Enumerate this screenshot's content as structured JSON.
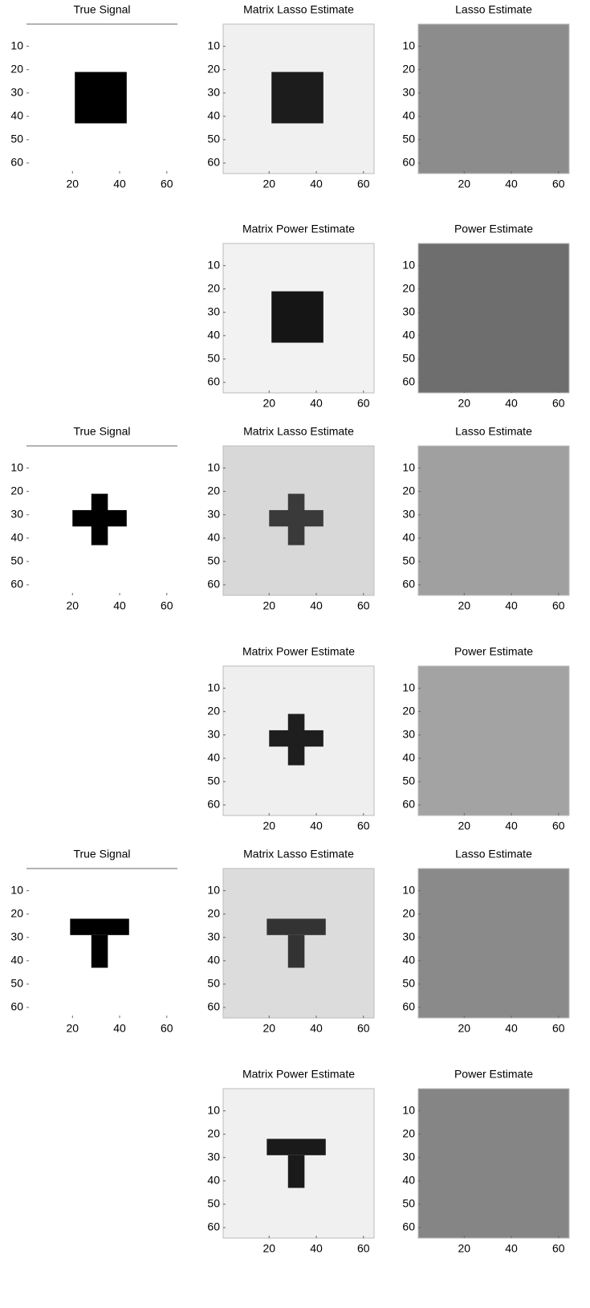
{
  "chart_data": [
    {
      "type": "heatmap",
      "title": "True Signal",
      "xlim": [
        0.5,
        64.5
      ],
      "ylim": [
        0.5,
        64.5
      ],
      "xticks": [
        20,
        40,
        60
      ],
      "yticks": [
        10,
        20,
        30,
        40,
        50,
        60
      ],
      "background": "#ffffff",
      "block_color": "#000000",
      "blocks": [
        {
          "x": [
            21,
            43
          ],
          "y": [
            21,
            43
          ]
        }
      ]
    },
    {
      "type": "heatmap",
      "title": "Matrix Lasso Estimate",
      "xlim": [
        0.5,
        64.5
      ],
      "ylim": [
        0.5,
        64.5
      ],
      "xticks": [
        20,
        40,
        60
      ],
      "yticks": [
        10,
        20,
        30,
        40,
        50,
        60
      ],
      "background": "#f0f0f0",
      "block_color": "#1c1c1c",
      "blocks": [
        {
          "x": [
            21,
            43
          ],
          "y": [
            21,
            43
          ]
        }
      ]
    },
    {
      "type": "heatmap",
      "title": "Lasso Estimate",
      "xlim": [
        0.5,
        64.5
      ],
      "ylim": [
        0.5,
        64.5
      ],
      "xticks": [
        20,
        40,
        60
      ],
      "yticks": [
        10,
        20,
        30,
        40,
        50,
        60
      ],
      "background": "#8c8c8c",
      "block_color": "#8c8c8c",
      "blocks": []
    },
    {
      "type": "heatmap",
      "title": "Matrix Power Estimate",
      "xlim": [
        0.5,
        64.5
      ],
      "ylim": [
        0.5,
        64.5
      ],
      "xticks": [
        20,
        40,
        60
      ],
      "yticks": [
        10,
        20,
        30,
        40,
        50,
        60
      ],
      "background": "#f2f2f2",
      "block_color": "#151515",
      "blocks": [
        {
          "x": [
            21,
            43
          ],
          "y": [
            21,
            43
          ]
        }
      ]
    },
    {
      "type": "heatmap",
      "title": "Power Estimate",
      "xlim": [
        0.5,
        64.5
      ],
      "ylim": [
        0.5,
        64.5
      ],
      "xticks": [
        20,
        40,
        60
      ],
      "yticks": [
        10,
        20,
        30,
        40,
        50,
        60
      ],
      "background": "#6e6e6e",
      "block_color": "#6e6e6e",
      "blocks": []
    },
    {
      "type": "heatmap",
      "title": "True Signal",
      "xlim": [
        0.5,
        64.5
      ],
      "ylim": [
        0.5,
        64.5
      ],
      "xticks": [
        20,
        40,
        60
      ],
      "yticks": [
        10,
        20,
        30,
        40,
        50,
        60
      ],
      "background": "#ffffff",
      "block_color": "#000000",
      "blocks": [
        {
          "x": [
            28,
            35
          ],
          "y": [
            21,
            43
          ]
        },
        {
          "x": [
            20,
            43
          ],
          "y": [
            28,
            35
          ]
        }
      ]
    },
    {
      "type": "heatmap",
      "title": "Matrix Lasso Estimate",
      "xlim": [
        0.5,
        64.5
      ],
      "ylim": [
        0.5,
        64.5
      ],
      "xticks": [
        20,
        40,
        60
      ],
      "yticks": [
        10,
        20,
        30,
        40,
        50,
        60
      ],
      "background": "#d8d8d8",
      "block_color": "#3a3a3a",
      "blocks": [
        {
          "x": [
            28,
            35
          ],
          "y": [
            21,
            43
          ]
        },
        {
          "x": [
            20,
            43
          ],
          "y": [
            28,
            35
          ]
        }
      ]
    },
    {
      "type": "heatmap",
      "title": "Lasso Estimate",
      "xlim": [
        0.5,
        64.5
      ],
      "ylim": [
        0.5,
        64.5
      ],
      "xticks": [
        20,
        40,
        60
      ],
      "yticks": [
        10,
        20,
        30,
        40,
        50,
        60
      ],
      "background": "#a0a0a0",
      "block_color": "#a0a0a0",
      "blocks": []
    },
    {
      "type": "heatmap",
      "title": "Matrix Power Estimate",
      "xlim": [
        0.5,
        64.5
      ],
      "ylim": [
        0.5,
        64.5
      ],
      "xticks": [
        20,
        40,
        60
      ],
      "yticks": [
        10,
        20,
        30,
        40,
        50,
        60
      ],
      "background": "#efefef",
      "block_color": "#1e1e1e",
      "blocks": [
        {
          "x": [
            28,
            35
          ],
          "y": [
            21,
            43
          ]
        },
        {
          "x": [
            20,
            43
          ],
          "y": [
            28,
            35
          ]
        }
      ]
    },
    {
      "type": "heatmap",
      "title": "Power Estimate",
      "xlim": [
        0.5,
        64.5
      ],
      "ylim": [
        0.5,
        64.5
      ],
      "xticks": [
        20,
        40,
        60
      ],
      "yticks": [
        10,
        20,
        30,
        40,
        50,
        60
      ],
      "background": "#a3a3a3",
      "block_color": "#a3a3a3",
      "blocks": []
    },
    {
      "type": "heatmap",
      "title": "True Signal",
      "xlim": [
        0.5,
        64.5
      ],
      "ylim": [
        0.5,
        64.5
      ],
      "xticks": [
        20,
        40,
        60
      ],
      "yticks": [
        10,
        20,
        30,
        40,
        50,
        60
      ],
      "background": "#ffffff",
      "block_color": "#000000",
      "blocks": [
        {
          "x": [
            19,
            44
          ],
          "y": [
            22,
            29
          ]
        },
        {
          "x": [
            28,
            35
          ],
          "y": [
            29,
            43
          ]
        }
      ]
    },
    {
      "type": "heatmap",
      "title": "Matrix Lasso Estimate",
      "xlim": [
        0.5,
        64.5
      ],
      "ylim": [
        0.5,
        64.5
      ],
      "xticks": [
        20,
        40,
        60
      ],
      "yticks": [
        10,
        20,
        30,
        40,
        50,
        60
      ],
      "background": "#dcdcdc",
      "block_color": "#333333",
      "blocks": [
        {
          "x": [
            19,
            44
          ],
          "y": [
            22,
            29
          ]
        },
        {
          "x": [
            28,
            35
          ],
          "y": [
            29,
            43
          ]
        }
      ]
    },
    {
      "type": "heatmap",
      "title": "Lasso Estimate",
      "xlim": [
        0.5,
        64.5
      ],
      "ylim": [
        0.5,
        64.5
      ],
      "xticks": [
        20,
        40,
        60
      ],
      "yticks": [
        10,
        20,
        30,
        40,
        50,
        60
      ],
      "background": "#8a8a8a",
      "block_color": "#8a8a8a",
      "blocks": []
    },
    {
      "type": "heatmap",
      "title": "Matrix Power Estimate",
      "xlim": [
        0.5,
        64.5
      ],
      "ylim": [
        0.5,
        64.5
      ],
      "xticks": [
        20,
        40,
        60
      ],
      "yticks": [
        10,
        20,
        30,
        40,
        50,
        60
      ],
      "background": "#f0f0f0",
      "block_color": "#1a1a1a",
      "blocks": [
        {
          "x": [
            19,
            44
          ],
          "y": [
            22,
            29
          ]
        },
        {
          "x": [
            28,
            35
          ],
          "y": [
            29,
            43
          ]
        }
      ]
    },
    {
      "type": "heatmap",
      "title": "Power Estimate",
      "xlim": [
        0.5,
        64.5
      ],
      "ylim": [
        0.5,
        64.5
      ],
      "xticks": [
        20,
        40,
        60
      ],
      "yticks": [
        10,
        20,
        30,
        40,
        50,
        60
      ],
      "background": "#858585",
      "block_color": "#858585",
      "blocks": []
    }
  ]
}
